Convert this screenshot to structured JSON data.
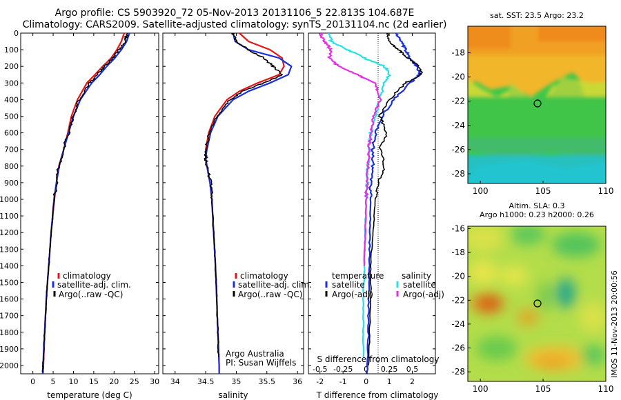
{
  "header": {
    "line1": "Argo profile: CS 5903920_72 05-Nov-2013 20131106_5 22.813S 104.687E",
    "line2": "Climatology: CARS2009. Satellite-adjusted climatology: synTS_20131104.nc (2d earlier)"
  },
  "footer_text": {
    "argo_australia": "Argo Australia",
    "pi": "PI: Susan Wijffels",
    "stamp": "IMOS 11-Nov-2013 20:00:56"
  },
  "colors": {
    "climatology": "#e8141a",
    "satellite": "#1a2ee0",
    "argo": "#000000",
    "salinity_satellite": "#27e0e6",
    "salinity_argo": "#e62ee6"
  },
  "chart_data": [
    {
      "type": "line",
      "xlabel": "temperature (deg C)",
      "ylabel": "",
      "xlim": [
        -3,
        31
      ],
      "ylim": [
        2050,
        0
      ],
      "xticks": [
        0,
        5,
        10,
        15,
        20,
        25,
        30
      ],
      "yticks": [
        0,
        100,
        200,
        300,
        400,
        500,
        600,
        700,
        800,
        900,
        1000,
        1100,
        1200,
        1300,
        1400,
        1500,
        1600,
        1700,
        1800,
        1900,
        2000
      ],
      "legend": [
        "climatology",
        "satellite-adj. clim.",
        "Argo(..raw -QC)"
      ],
      "legend_position": "bottom-center",
      "series": [
        {
          "name": "climatology",
          "color": "#e8141a",
          "y": [
            0,
            50,
            100,
            150,
            200,
            250,
            300,
            400,
            500,
            600,
            700,
            800,
            900,
            1000,
            1200,
            1400,
            1600,
            1800,
            2000,
            2050
          ],
          "x": [
            22.5,
            21.8,
            20.7,
            19.3,
            17.2,
            15.3,
            13.3,
            11.0,
            9.5,
            8.6,
            7.6,
            6.4,
            5.8,
            5.3,
            4.5,
            3.9,
            3.3,
            2.9,
            2.6,
            2.5
          ]
        },
        {
          "name": "satellite-adj. clim.",
          "color": "#1a2ee0",
          "y": [
            0,
            50,
            100,
            150,
            200,
            250,
            300,
            400,
            500,
            600,
            700,
            800,
            900,
            1000,
            1200,
            1400,
            1600,
            1800,
            2000,
            2050
          ],
          "x": [
            23.8,
            23.1,
            21.8,
            20.2,
            18.2,
            16.5,
            14.5,
            11.7,
            10.0,
            8.8,
            7.6,
            6.5,
            5.8,
            5.2,
            4.5,
            3.9,
            3.3,
            2.9,
            2.5,
            2.4
          ]
        },
        {
          "name": "Argo(..raw -QC)",
          "color": "#000000",
          "y": [
            0,
            50,
            100,
            150,
            200,
            250,
            300,
            400,
            500,
            600,
            700,
            800,
            900,
            1000,
            1200,
            1400,
            1600,
            1800,
            2000,
            2040
          ],
          "x": [
            23.3,
            22.7,
            21.3,
            19.6,
            17.6,
            15.9,
            14.0,
            11.4,
            9.9,
            8.8,
            7.5,
            6.4,
            5.8,
            5.3,
            4.5,
            3.9,
            3.3,
            2.9,
            2.5,
            2.4
          ]
        }
      ]
    },
    {
      "type": "line",
      "xlabel": "salinity",
      "ylabel": "",
      "xlim": [
        33.8,
        36.1
      ],
      "ylim": [
        2050,
        0
      ],
      "xticks": [
        34,
        34.5,
        35,
        35.5,
        36
      ],
      "legend": [
        "climatology",
        "satellite-adj. clim.",
        "Argo(..raw -QC)"
      ],
      "legend_position": "bottom-center",
      "series": [
        {
          "name": "climatology",
          "color": "#e8141a",
          "y": [
            0,
            50,
            100,
            150,
            200,
            250,
            300,
            350,
            400,
            500,
            600,
            700,
            750,
            800,
            900,
            1000,
            1200,
            1400,
            1600,
            1800,
            2000,
            2050
          ],
          "x": [
            35.05,
            35.2,
            35.55,
            35.75,
            35.78,
            35.7,
            35.35,
            35.05,
            34.85,
            34.65,
            34.55,
            34.5,
            34.5,
            34.52,
            34.57,
            34.6,
            34.63,
            34.66,
            34.68,
            34.7,
            34.72,
            34.72
          ]
        },
        {
          "name": "satellite-adj. clim.",
          "color": "#1a2ee0",
          "y": [
            0,
            50,
            100,
            150,
            200,
            250,
            300,
            350,
            400,
            500,
            600,
            700,
            750,
            800,
            900,
            1000,
            1200,
            1400,
            1600,
            1800,
            2000,
            2050
          ],
          "x": [
            34.95,
            34.98,
            35.2,
            35.7,
            35.9,
            35.85,
            35.55,
            35.2,
            34.95,
            34.7,
            34.58,
            34.52,
            34.5,
            34.52,
            34.57,
            34.6,
            34.63,
            34.66,
            34.68,
            34.7,
            34.72,
            34.72
          ]
        },
        {
          "name": "Argo(..raw -QC)",
          "color": "#000000",
          "y": [
            0,
            50,
            100,
            150,
            200,
            250,
            300,
            350,
            400,
            500,
            600,
            700,
            750,
            800,
            900,
            1000,
            1200,
            1400,
            1600,
            1800,
            1950
          ],
          "x": [
            34.95,
            35.0,
            35.2,
            35.45,
            35.6,
            35.75,
            35.45,
            35.1,
            34.9,
            34.68,
            34.56,
            34.5,
            34.5,
            34.52,
            34.58,
            34.6,
            34.63,
            34.66,
            34.68,
            34.7,
            34.71
          ]
        }
      ]
    },
    {
      "type": "line",
      "xlabel": "T difference from climatology",
      "xlabel_top": "S difference from climatology",
      "xlim": [
        -2.5,
        3
      ],
      "ylim": [
        2050,
        0
      ],
      "xticks": [
        -2,
        -1,
        0,
        1,
        2
      ],
      "xticks_salinity": [
        -0.5,
        -0.25,
        0,
        0.25,
        0.5
      ],
      "legend_groups": [
        "temperature",
        "salinity"
      ],
      "legend": [
        "satellite",
        "Argo(-adj)",
        "satellite",
        "Argo(-adj)"
      ],
      "series": [
        {
          "name": "temperature satellite",
          "color": "#1a2ee0",
          "y": [
            0,
            50,
            100,
            150,
            200,
            250,
            300,
            400,
            500,
            600,
            700,
            800,
            900,
            1000,
            1200,
            1400,
            1600,
            1800,
            2000,
            2050
          ],
          "x": [
            1.3,
            1.5,
            1.7,
            1.9,
            2.2,
            2.3,
            1.9,
            1.2,
            0.7,
            0.4,
            0.3,
            0.3,
            0.2,
            0.2,
            0.15,
            0.15,
            0.1,
            0.1,
            0.05,
            0.05
          ]
        },
        {
          "name": "temperature Argo(-adj)",
          "color": "#000000",
          "y": [
            0,
            50,
            100,
            150,
            200,
            250,
            300,
            400,
            500,
            600,
            700,
            800,
            900,
            1000,
            1200,
            1400,
            1600,
            1800,
            2000
          ],
          "x": [
            0.9,
            1.0,
            1.4,
            1.8,
            2.3,
            2.4,
            1.7,
            1.0,
            0.6,
            0.9,
            0.6,
            0.8,
            0.5,
            0.4,
            0.3,
            0.2,
            0.2,
            0.15,
            0.1
          ]
        },
        {
          "name": "salinity satellite",
          "color": "#27e0e6",
          "y": [
            0,
            50,
            100,
            150,
            200,
            250,
            300,
            400,
            500,
            600,
            700,
            800,
            900,
            1000,
            1200,
            1400,
            1600,
            1800,
            1950
          ],
          "x": [
            -0.4,
            -0.38,
            -0.2,
            -0.02,
            0.2,
            0.25,
            0.2,
            0.15,
            0.1,
            0.05,
            0.03,
            0.02,
            0.01,
            0.0,
            -0.01,
            -0.02,
            -0.03,
            -0.03,
            -0.03
          ]
        },
        {
          "name": "salinity Argo(-adj)",
          "color": "#e62ee6",
          "y": [
            0,
            50,
            100,
            150,
            200,
            250,
            300,
            400,
            500,
            600,
            700,
            800,
            900,
            1000,
            1200,
            1400
          ],
          "x": [
            -0.5,
            -0.45,
            -0.38,
            -0.4,
            -0.3,
            -0.1,
            0.1,
            0.15,
            0.08,
            0.05,
            0.03,
            0.02,
            0.01,
            0.0,
            -0.01,
            -0.02
          ]
        }
      ]
    },
    {
      "type": "heatmap",
      "title": "sat. SST: 23.5 Argo: 23.2",
      "xlim": [
        99,
        110
      ],
      "ylim": [
        -28.8,
        -15.8
      ],
      "xticks": [
        100,
        105,
        110
      ],
      "yticks": [
        -18,
        -20,
        -22,
        -24,
        -26,
        -28
      ],
      "marker": {
        "lon": 104.687,
        "lat": -22.813
      }
    },
    {
      "type": "heatmap",
      "title_line1": "Altim. SLA: 0.3",
      "title_line2": "Argo h1000: 0.23 h2000: 0.26",
      "xlim": [
        99,
        110
      ],
      "ylim": [
        -28.8,
        -15.8
      ],
      "xticks": [
        100,
        105,
        110
      ],
      "yticks": [
        -16,
        -18,
        -20,
        -22,
        -24,
        -26,
        -28
      ],
      "marker": {
        "lon": 104.687,
        "lat": -22.813
      }
    }
  ]
}
